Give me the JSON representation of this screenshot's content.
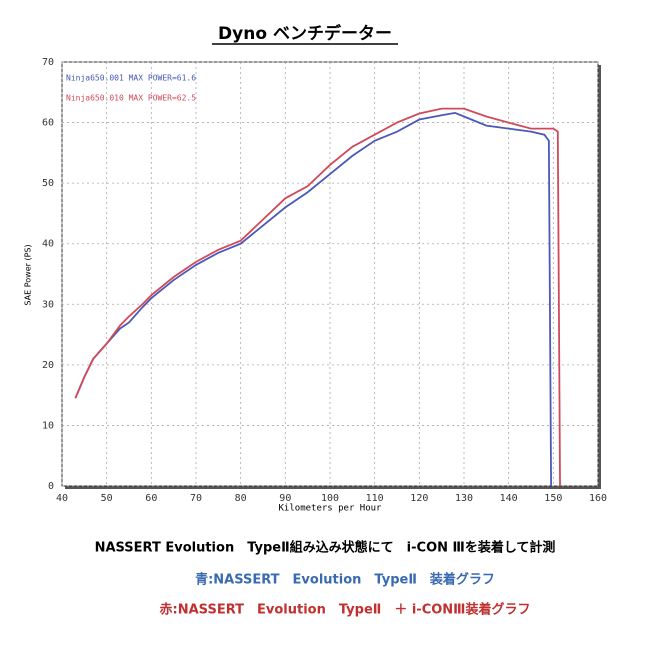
{
  "chart_data": {
    "type": "line",
    "title": "Dyno ベンチデーター",
    "x_label": "Kilometers per Hour",
    "y_label": "SAE Power (PS)",
    "xlim": [
      40,
      160
    ],
    "xticks": [
      40,
      50,
      60,
      70,
      80,
      90,
      100,
      110,
      120,
      130,
      140,
      150,
      160
    ],
    "ylim": [
      0,
      70
    ],
    "yticks": [
      0,
      10,
      20,
      30,
      40,
      50,
      60,
      70
    ],
    "grid": true,
    "legend": "top-left",
    "series": [
      {
        "name": "Ninja650.001  MAX POWER=61.6",
        "color": "#4a58b8",
        "x": [
          43,
          45,
          47,
          50,
          53,
          55,
          58,
          60,
          65,
          70,
          75,
          80,
          85,
          90,
          95,
          100,
          105,
          110,
          115,
          120,
          125,
          128,
          130,
          135,
          140,
          145,
          148,
          149,
          149.5
        ],
        "values": [
          14.5,
          18,
          21,
          23.5,
          26,
          27,
          29.5,
          31,
          34,
          36.5,
          38.5,
          40,
          43,
          46,
          48.5,
          51.5,
          54.5,
          57,
          58.5,
          60.5,
          61.2,
          61.6,
          61,
          59.5,
          59,
          58.5,
          58,
          57,
          0
        ]
      },
      {
        "name": "Ninja650.010  MAX POWER=62.5",
        "color": "#d04a5a",
        "x": [
          43,
          45,
          47,
          50,
          53,
          55,
          58,
          60,
          65,
          70,
          75,
          80,
          85,
          90,
          95,
          100,
          105,
          110,
          115,
          120,
          125,
          130,
          135,
          140,
          145,
          148,
          150,
          151,
          151.5
        ],
        "values": [
          14.5,
          18,
          21,
          23.5,
          26.5,
          28,
          30,
          31.5,
          34.5,
          37,
          39,
          40.5,
          44,
          47.5,
          49.5,
          53,
          56,
          58,
          60,
          61.5,
          62.3,
          62.3,
          61,
          60,
          59,
          59,
          59,
          58.5,
          0
        ]
      }
    ],
    "annotations": [
      {
        "text": "NASSERT Evolution　TypeⅡ組み込み状態にて　i-CON Ⅲを装着して計測",
        "color": "#000000"
      },
      {
        "text": "青:NASSERT　Evolution　TypeⅡ　装着グラフ",
        "color": "#3a6ab0"
      },
      {
        "text": "赤:NASSERT　Evolution　TypeⅡ　＋ i-CONⅢ装着グラフ",
        "color": "#c03030"
      }
    ]
  }
}
